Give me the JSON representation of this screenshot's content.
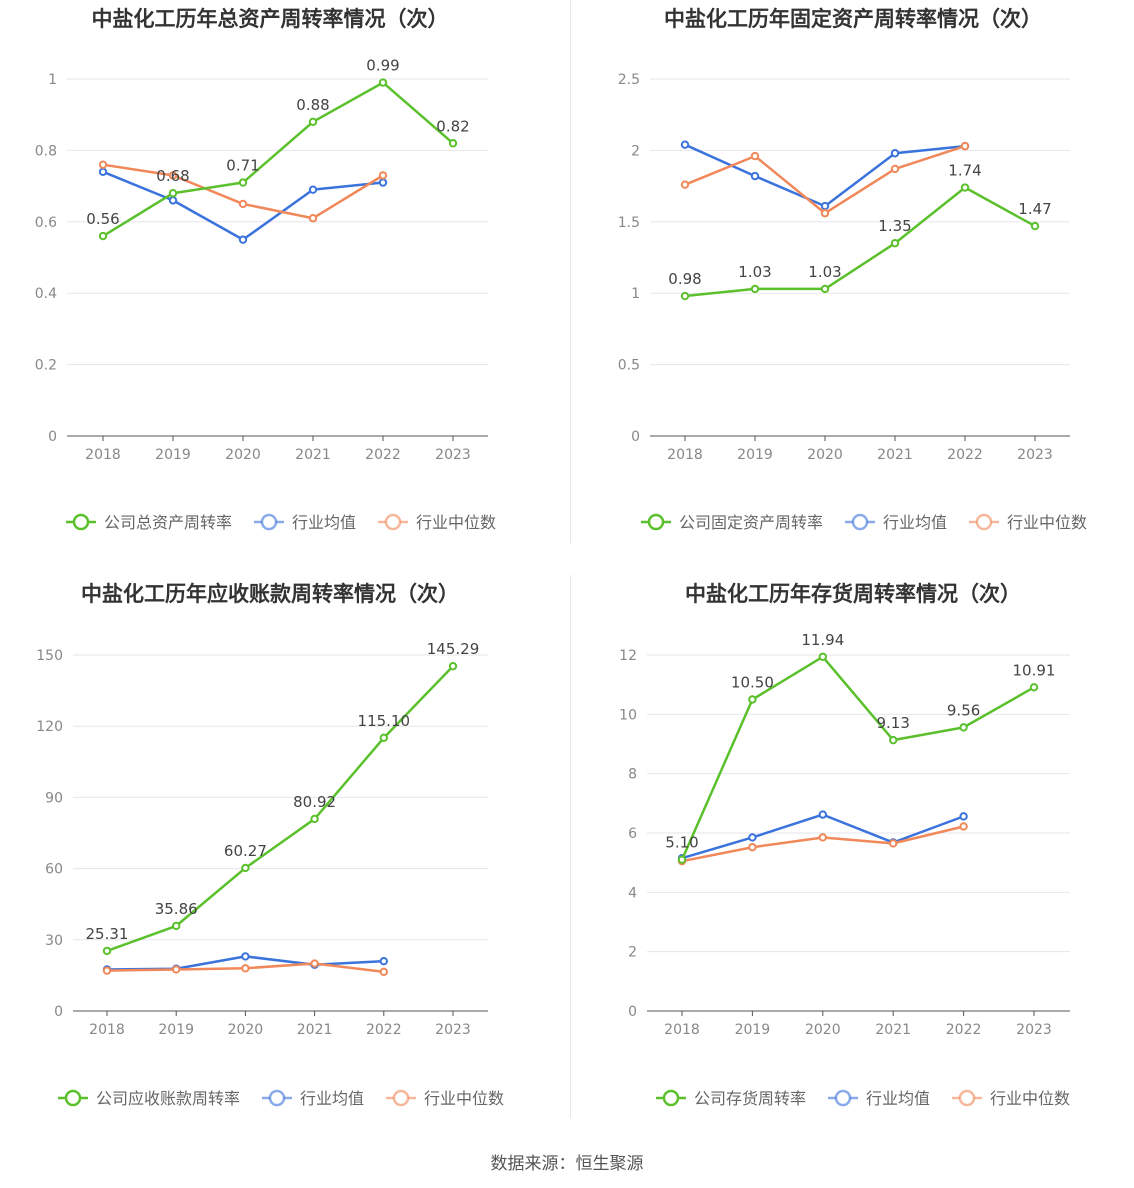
{
  "source_label": "数据来源：恒生聚源",
  "colors": {
    "company": "#5ac02c",
    "avg": "#3b73dc",
    "median": "#f0885a",
    "grid": "#e6e6ee",
    "axis": "#555555",
    "tick": "#888888",
    "title": "#333333"
  },
  "chart_data": [
    {
      "type": "line",
      "title": "中盐化工历年总资产周转率情况（次）",
      "categories": [
        "2018",
        "2019",
        "2020",
        "2021",
        "2022",
        "2023"
      ],
      "ylim": [
        0,
        1
      ],
      "yticks": [
        "0",
        "0.2",
        "0.4",
        "0.6",
        "0.8",
        "1"
      ],
      "ytick_values": [
        0,
        0.2,
        0.4,
        0.6,
        0.8,
        1
      ],
      "legend_position": "bottom",
      "series": [
        {
          "name": "公司总资产周转率",
          "role": "company",
          "values": [
            0.56,
            0.68,
            0.71,
            0.88,
            0.99,
            0.82
          ],
          "labels": [
            "0.56",
            "0.68",
            "0.71",
            "0.88",
            "0.99",
            "0.82"
          ]
        },
        {
          "name": "行业均值",
          "role": "avg",
          "values": [
            0.74,
            0.66,
            0.55,
            0.69,
            0.71,
            null
          ]
        },
        {
          "name": "行业中位数",
          "role": "median",
          "values": [
            0.76,
            0.73,
            0.65,
            0.61,
            0.73,
            null
          ]
        }
      ]
    },
    {
      "type": "line",
      "title": "中盐化工历年固定资产周转率情况（次）",
      "categories": [
        "2018",
        "2019",
        "2020",
        "2021",
        "2022",
        "2023"
      ],
      "ylim": [
        0,
        2.5
      ],
      "yticks": [
        "0",
        "0.5",
        "1",
        "1.5",
        "2",
        "2.5"
      ],
      "ytick_values": [
        0,
        0.5,
        1,
        1.5,
        2,
        2.5
      ],
      "legend_position": "bottom",
      "series": [
        {
          "name": "公司固定资产周转率",
          "role": "company",
          "values": [
            0.98,
            1.03,
            1.03,
            1.35,
            1.74,
            1.47
          ],
          "labels": [
            "0.98",
            "1.03",
            "1.03",
            "1.35",
            "1.74",
            "1.47"
          ]
        },
        {
          "name": "行业均值",
          "role": "avg",
          "values": [
            2.04,
            1.82,
            1.61,
            1.98,
            2.03,
            null
          ]
        },
        {
          "name": "行业中位数",
          "role": "median",
          "values": [
            1.76,
            1.96,
            1.56,
            1.87,
            2.03,
            null
          ]
        }
      ]
    },
    {
      "type": "line",
      "title": "中盐化工历年应收账款周转率情况（次）",
      "categories": [
        "2018",
        "2019",
        "2020",
        "2021",
        "2022",
        "2023"
      ],
      "ylim": [
        0,
        150
      ],
      "yticks": [
        "0",
        "30",
        "60",
        "90",
        "120",
        "150"
      ],
      "ytick_values": [
        0,
        30,
        60,
        90,
        120,
        150
      ],
      "legend_position": "bottom",
      "series": [
        {
          "name": "公司应收账款周转率",
          "role": "company",
          "values": [
            25.31,
            35.86,
            60.27,
            80.92,
            115.1,
            145.29
          ],
          "labels": [
            "25.31",
            "35.86",
            "60.27",
            "80.92",
            "115.10",
            "145.29"
          ]
        },
        {
          "name": "行业均值",
          "role": "avg",
          "values": [
            17.5,
            17.8,
            23.0,
            19.5,
            21.0,
            null
          ]
        },
        {
          "name": "行业中位数",
          "role": "median",
          "values": [
            17.0,
            17.5,
            18.0,
            20.0,
            16.5,
            null
          ]
        }
      ]
    },
    {
      "type": "line",
      "title": "中盐化工历年存货周转率情况（次）",
      "categories": [
        "2018",
        "2019",
        "2020",
        "2021",
        "2022",
        "2023"
      ],
      "ylim": [
        0,
        12
      ],
      "yticks": [
        "0",
        "2",
        "4",
        "6",
        "8",
        "10",
        "12"
      ],
      "ytick_values": [
        0,
        2,
        4,
        6,
        8,
        10,
        12
      ],
      "legend_position": "bottom",
      "series": [
        {
          "name": "公司存货周转率",
          "role": "company",
          "values": [
            5.1,
            10.5,
            11.94,
            9.13,
            9.56,
            10.91
          ],
          "labels": [
            "5.10",
            "10.50",
            "11.94",
            "9.13",
            "9.56",
            "10.91"
          ]
        },
        {
          "name": "行业均值",
          "role": "avg",
          "values": [
            5.15,
            5.85,
            6.62,
            5.68,
            6.56,
            null
          ]
        },
        {
          "name": "行业中位数",
          "role": "median",
          "values": [
            5.05,
            5.52,
            5.85,
            5.65,
            6.22,
            null
          ]
        }
      ]
    }
  ]
}
